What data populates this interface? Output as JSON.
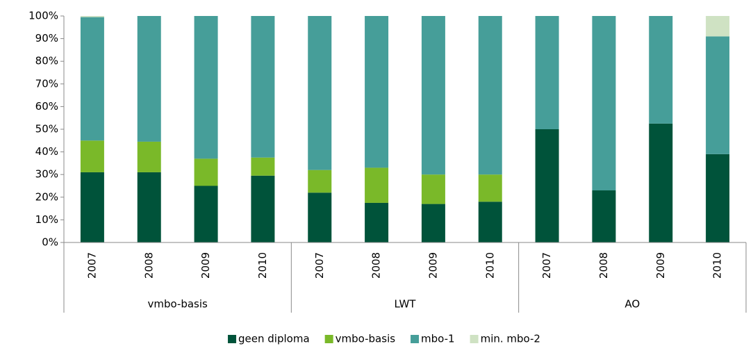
{
  "chart_data": {
    "type": "stacked_bar",
    "groups": [
      {
        "name": "vmbo-basis",
        "categories": [
          "2007",
          "2008",
          "2009",
          "2010"
        ]
      },
      {
        "name": "LWT",
        "categories": [
          "2007",
          "2008",
          "2009",
          "2010"
        ]
      },
      {
        "name": "AO",
        "categories": [
          "2007",
          "2008",
          "2009",
          "2010"
        ]
      }
    ],
    "series": [
      {
        "name": "geen diploma",
        "color": "#00533a",
        "values": [
          31,
          31,
          25,
          29.5,
          22,
          17.5,
          17,
          18,
          50,
          23,
          52.5,
          39
        ]
      },
      {
        "name": "vmbo-basis",
        "color": "#7ab929",
        "values": [
          14,
          13.5,
          12,
          8,
          10,
          15.5,
          13,
          12,
          0,
          0,
          0,
          0
        ]
      },
      {
        "name": "mbo-1",
        "color": "#469e99",
        "values": [
          54.5,
          55.5,
          63,
          62.5,
          68,
          67,
          70,
          70,
          50,
          77,
          47.5,
          52
        ]
      },
      {
        "name": "min. mbo-2",
        "color": "#cfe2c3",
        "values": [
          0.5,
          0,
          0,
          0,
          0,
          0,
          0,
          0,
          0,
          0,
          0,
          9
        ]
      }
    ],
    "ylim": [
      0,
      100
    ],
    "yticks": [
      {
        "value": 0,
        "label": "0%"
      },
      {
        "value": 10,
        "label": "10%"
      },
      {
        "value": 20,
        "label": "20%"
      },
      {
        "value": 30,
        "label": "30%"
      },
      {
        "value": 40,
        "label": "40%"
      },
      {
        "value": 50,
        "label": "50%"
      },
      {
        "value": 60,
        "label": "60%"
      },
      {
        "value": 70,
        "label": "70%"
      },
      {
        "value": 80,
        "label": "80%"
      },
      {
        "value": 90,
        "label": "90%"
      },
      {
        "value": 100,
        "label": "100%"
      }
    ],
    "legend": "bottom"
  }
}
